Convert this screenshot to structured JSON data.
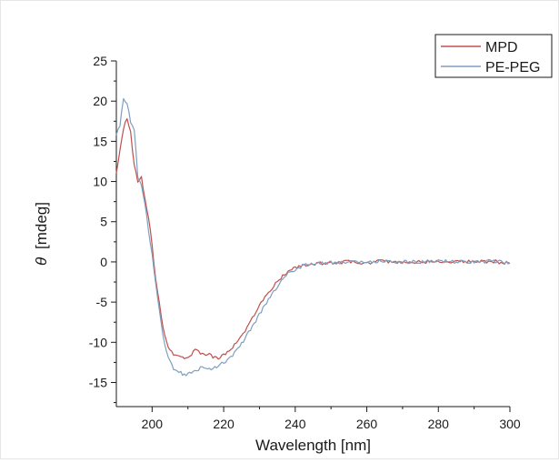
{
  "chart_data": {
    "type": "line",
    "title": "",
    "xlabel": "Wavelength [nm]",
    "ylabel_symbol": "θ",
    "ylabel_unit": "[mdeg]",
    "xlim": [
      190,
      300
    ],
    "ylim": [
      -18,
      25
    ],
    "x_ticks": [
      200,
      220,
      240,
      260,
      280,
      300
    ],
    "y_ticks": [
      25,
      20,
      15,
      10,
      5,
      0,
      -5,
      -10,
      -15
    ],
    "grid": false,
    "legend_position": "top-right",
    "series": [
      {
        "name": "MPD",
        "color": "#c0504d",
        "x": [
          190,
          191,
          192,
          193,
          194,
          195,
          196,
          197,
          198,
          199,
          200,
          201,
          202,
          203,
          204,
          205,
          206,
          207,
          208,
          209,
          210,
          211,
          212,
          213,
          214,
          215,
          216,
          217,
          218,
          219,
          220,
          222,
          224,
          226,
          228,
          230,
          232,
          234,
          236,
          238,
          240,
          242,
          244,
          246,
          248,
          250,
          255,
          260,
          265,
          270,
          275,
          280,
          285,
          290,
          295,
          300
        ],
        "y": [
          11,
          14,
          16.5,
          18,
          16,
          12,
          10,
          10.5,
          8,
          5.5,
          2,
          -2,
          -5,
          -8,
          -10,
          -11,
          -11.5,
          -11.8,
          -12,
          -12,
          -11.8,
          -11.5,
          -11,
          -11.2,
          -11.4,
          -11.5,
          -11.6,
          -11.8,
          -12,
          -11.9,
          -11.5,
          -10.8,
          -9.8,
          -8.5,
          -7,
          -5.5,
          -4.2,
          -3,
          -2,
          -1.2,
          -0.7,
          -0.4,
          -0.3,
          -0.2,
          -0.2,
          -0.1,
          0,
          -0.1,
          0.1,
          0,
          0,
          0.1,
          0,
          0,
          0.1,
          -0.2
        ]
      },
      {
        "name": "PE-PEG",
        "color": "#7f9fbf",
        "x": [
          190,
          191,
          192,
          193,
          194,
          195,
          196,
          197,
          198,
          199,
          200,
          201,
          202,
          203,
          204,
          205,
          206,
          207,
          208,
          209,
          210,
          211,
          212,
          213,
          214,
          215,
          216,
          217,
          218,
          219,
          220,
          222,
          224,
          226,
          228,
          230,
          232,
          234,
          236,
          238,
          240,
          242,
          244,
          246,
          248,
          250,
          255,
          260,
          265,
          270,
          275,
          280,
          285,
          290,
          295,
          300
        ],
        "y": [
          16,
          17,
          20.5,
          19.5,
          17.5,
          16.5,
          10.5,
          9.5,
          7,
          4,
          1,
          -2.5,
          -6,
          -9,
          -11,
          -12.5,
          -13.2,
          -13.5,
          -13.8,
          -14,
          -14,
          -13.8,
          -13.5,
          -13.3,
          -13.2,
          -13.2,
          -13.3,
          -13.2,
          -13.0,
          -12.8,
          -12.5,
          -11.8,
          -10.8,
          -9.5,
          -8,
          -6.5,
          -5,
          -3.6,
          -2.4,
          -1.5,
          -0.9,
          -0.5,
          -0.3,
          -0.2,
          -0.2,
          -0.1,
          0,
          -0.1,
          0.1,
          0,
          0,
          0.1,
          0,
          0,
          0.1,
          -0.1
        ]
      }
    ]
  }
}
